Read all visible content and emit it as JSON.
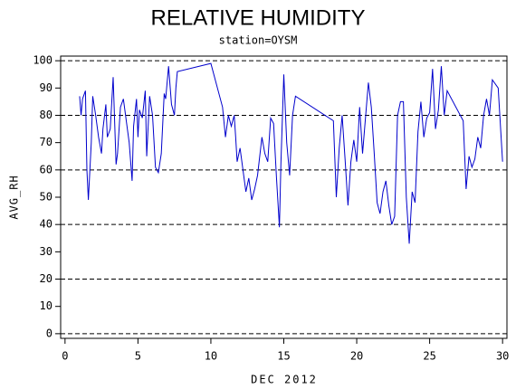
{
  "chart_data": {
    "type": "line",
    "title": "RELATIVE HUMIDITY",
    "subtitle": "station=OYSM",
    "x_label": "DEC 2012",
    "y_label": "AVG_RH",
    "color": "#0000cc",
    "x": [
      1.0,
      1.1,
      1.2,
      1.4,
      1.5,
      1.6,
      1.8,
      1.9,
      2.1,
      2.3,
      2.5,
      2.6,
      2.8,
      2.9,
      3.1,
      3.3,
      3.5,
      3.6,
      3.8,
      4.0,
      4.2,
      4.4,
      4.6,
      4.7,
      4.9,
      5.0,
      5.1,
      5.3,
      5.5,
      5.6,
      5.8,
      6.0,
      6.2,
      6.4,
      6.6,
      6.8,
      6.9,
      7.1,
      7.3,
      7.5,
      7.6,
      7.7,
      10.0,
      10.8,
      11.0,
      11.2,
      11.4,
      11.6,
      11.7,
      11.8,
      12.0,
      12.2,
      12.4,
      12.6,
      12.8,
      13.0,
      13.2,
      13.5,
      13.7,
      13.9,
      14.1,
      14.3,
      14.5,
      14.7,
      14.8,
      15.0,
      15.2,
      15.4,
      15.6,
      15.8,
      18.4,
      18.6,
      18.8,
      19.0,
      19.2,
      19.4,
      19.6,
      19.8,
      20.0,
      20.2,
      20.4,
      20.6,
      20.8,
      21.0,
      21.2,
      21.4,
      21.6,
      21.8,
      22.0,
      22.2,
      22.4,
      22.6,
      22.8,
      23.0,
      23.2,
      23.4,
      23.6,
      23.8,
      24.0,
      24.2,
      24.4,
      24.6,
      24.8,
      25.0,
      25.2,
      25.4,
      25.6,
      25.8,
      26.0,
      26.2,
      27.3,
      27.5,
      27.7,
      27.9,
      28.1,
      28.3,
      28.5,
      28.7,
      28.9,
      29.1,
      29.3,
      29.7,
      30.0
    ],
    "values": [
      87,
      80,
      86,
      89,
      60,
      49,
      70,
      87,
      80,
      72,
      66,
      75,
      84,
      72,
      75,
      94,
      62,
      66,
      83,
      86,
      78,
      70,
      56,
      76,
      86,
      72,
      82,
      79,
      89,
      65,
      87,
      80,
      61,
      59,
      66,
      88,
      86,
      98,
      84,
      80,
      90,
      96,
      99,
      83,
      72,
      80,
      76,
      80,
      72,
      63,
      68,
      60,
      52,
      57,
      49,
      53,
      58,
      72,
      66,
      63,
      79,
      77,
      57,
      39,
      62,
      95,
      70,
      58,
      80,
      87,
      78,
      50,
      68,
      80,
      64,
      47,
      63,
      71,
      63,
      83,
      66,
      79,
      92,
      83,
      66,
      48,
      44,
      52,
      56,
      47,
      40,
      43,
      80,
      85,
      85,
      50,
      33,
      52,
      48,
      74,
      85,
      72,
      79,
      81,
      97,
      75,
      82,
      98,
      80,
      89,
      78,
      53,
      65,
      61,
      64,
      72,
      68,
      80,
      86,
      80,
      93,
      90,
      63
    ],
    "xlim": [
      -0.3,
      30.3
    ],
    "ylim": [
      -1.7,
      101.7
    ],
    "xticks": [
      0,
      5,
      10,
      15,
      20,
      25,
      30
    ],
    "yticks": [
      0,
      10,
      20,
      30,
      40,
      50,
      60,
      70,
      80,
      90,
      100
    ],
    "grid_ticks": [
      0,
      20,
      40,
      60,
      80,
      100
    ]
  }
}
